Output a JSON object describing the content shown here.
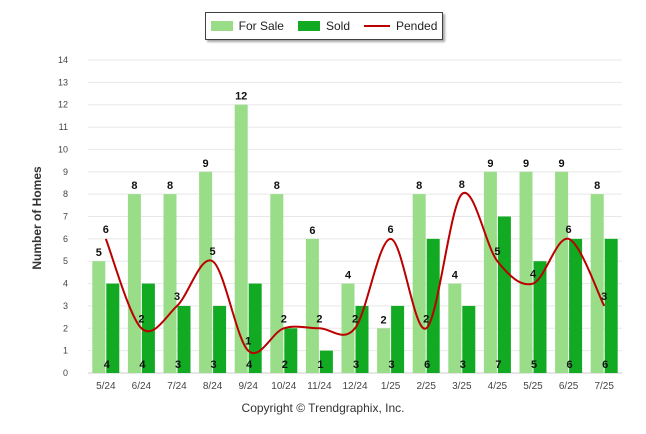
{
  "chart_data": {
    "type": "bar",
    "categories": [
      "5/24",
      "6/24",
      "7/24",
      "8/24",
      "9/24",
      "10/24",
      "11/24",
      "12/24",
      "1/25",
      "2/25",
      "3/25",
      "4/25",
      "5/25",
      "6/25",
      "7/25"
    ],
    "series": [
      {
        "name": "For Sale",
        "type": "bar",
        "color": "#99dd88",
        "values": [
          5,
          8,
          8,
          9,
          12,
          8,
          6,
          4,
          2,
          8,
          4,
          9,
          9,
          9,
          8
        ]
      },
      {
        "name": "Sold",
        "type": "bar",
        "color": "#11aa22",
        "values": [
          4,
          4,
          3,
          3,
          4,
          2,
          1,
          3,
          3,
          6,
          3,
          7,
          5,
          6,
          6
        ]
      },
      {
        "name": "Pended",
        "type": "line",
        "color": "#bb0000",
        "values": [
          6,
          2,
          3,
          5,
          1,
          2,
          2,
          2,
          6,
          2,
          8,
          5,
          4,
          6,
          3
        ]
      }
    ],
    "ylabel": "Number of Homes",
    "xlabel": "",
    "ylim": [
      0,
      14
    ],
    "yticks": [
      0,
      1,
      2,
      3,
      4,
      5,
      6,
      7,
      8,
      9,
      10,
      11,
      12,
      13,
      14
    ],
    "grid": true,
    "legend_position": "top-center"
  },
  "legend": {
    "items": [
      {
        "label": "For Sale",
        "color": "#99dd88"
      },
      {
        "label": "Sold",
        "color": "#11aa22"
      },
      {
        "label": "Pended",
        "color": "#bb0000"
      }
    ]
  },
  "footer": {
    "copyright": "Copyright © Trendgraphix, Inc."
  }
}
